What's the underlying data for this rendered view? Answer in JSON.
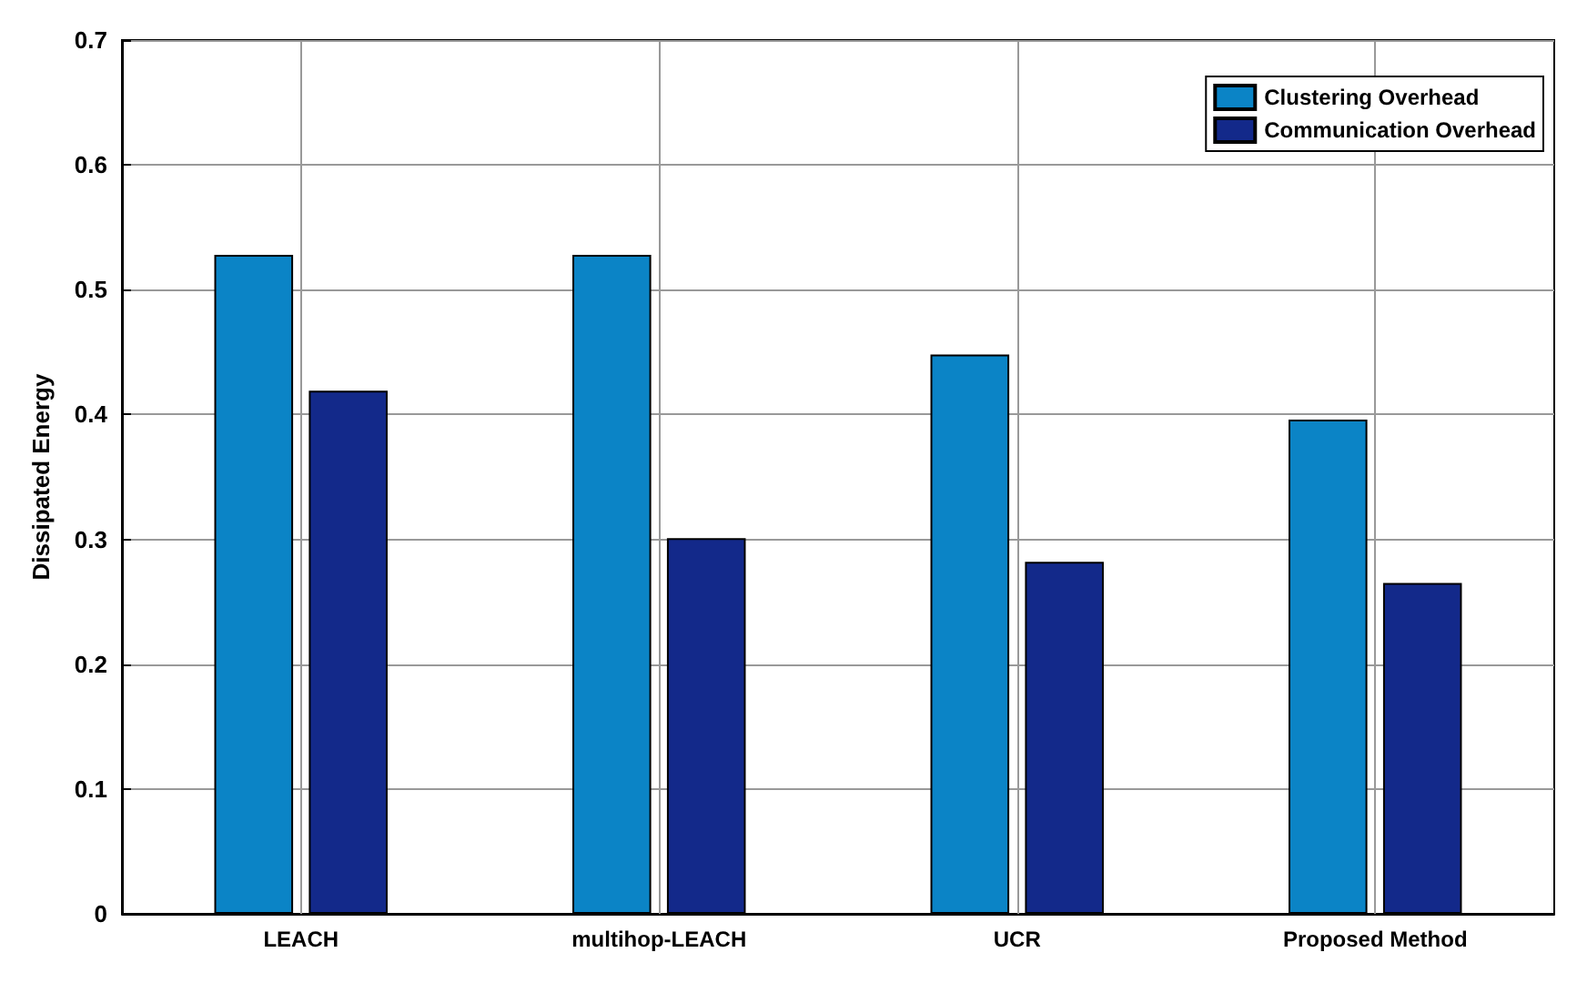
{
  "chart_data": {
    "type": "bar",
    "ylabel": "Dissipated Energy",
    "categories": [
      "LEACH",
      "multihop-LEACH",
      "UCR",
      "Proposed Method"
    ],
    "series": [
      {
        "name": "Clustering Overhead",
        "color": "#0b84c6",
        "values": [
          0.528,
          0.528,
          0.448,
          0.396
        ]
      },
      {
        "name": "Communication Overhead",
        "color": "#13298a",
        "values": [
          0.419,
          0.301,
          0.282,
          0.265
        ]
      }
    ],
    "ylim": [
      0,
      0.7
    ],
    "yticks": [
      0,
      0.1,
      0.2,
      0.3,
      0.4,
      0.5,
      0.6,
      0.7
    ],
    "grid": true,
    "legend": "top right"
  }
}
